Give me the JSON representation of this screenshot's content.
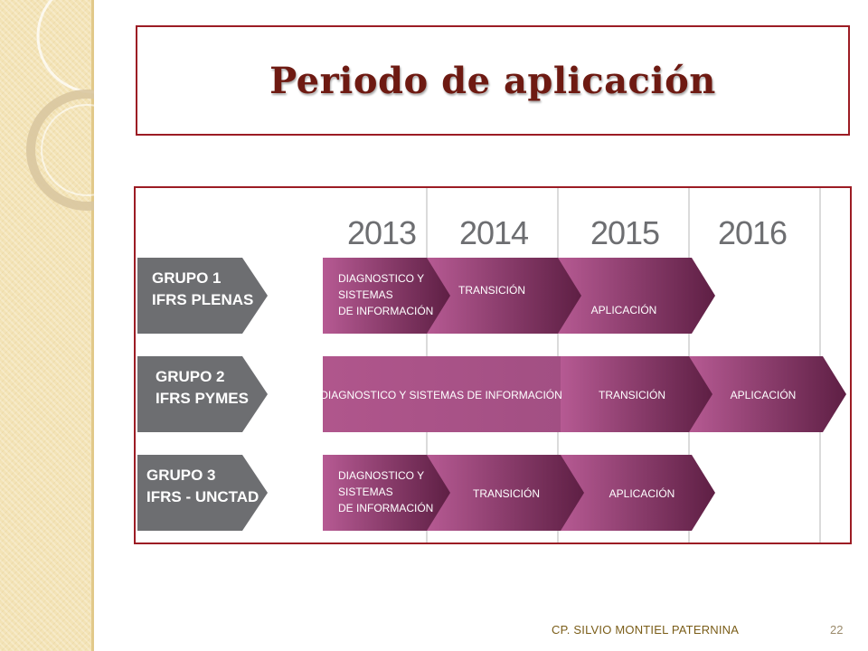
{
  "slide": {
    "title": "Periodo de aplicación",
    "footer": "CP. SILVIO MONTIEL PATERNINA",
    "page_number": "22"
  },
  "diagram": {
    "years": [
      "2013",
      "2014",
      "2015",
      "2016"
    ],
    "groups": [
      {
        "label_lines": [
          "GRUPO 1",
          "IFRS PLENAS"
        ],
        "phases": [
          {
            "lines": [
              "DIAGNOSTICO Y",
              "SISTEMAS",
              "DE INFORMACIÓN"
            ]
          },
          {
            "lines": [
              "TRANSICIÓN"
            ]
          },
          {
            "lines": [
              "APLICACIÓN"
            ]
          }
        ]
      },
      {
        "label_lines": [
          "GRUPO 2",
          "IFRS PYMES"
        ],
        "phases": [
          {
            "lines": [
              "DIAGNOSTICO Y SISTEMAS DE INFORMACIÓN"
            ]
          },
          {
            "lines": [
              "TRANSICIÓN"
            ]
          },
          {
            "lines": [
              "APLICACIÓN"
            ]
          }
        ]
      },
      {
        "label_lines": [
          "GRUPO 3",
          "IFRS - UNCTAD"
        ],
        "phases": [
          {
            "lines": [
              "DIAGNOSTICO Y",
              "SISTEMAS",
              "DE INFORMACIÓN"
            ]
          },
          {
            "lines": [
              "TRANSICIÓN"
            ]
          },
          {
            "lines": [
              "APLICACIÓN"
            ]
          }
        ]
      }
    ],
    "colors": {
      "group_box": "#6d6e71",
      "phase_light": "#b65a93",
      "phase_dark": "#5e1f44",
      "gridline": "#cfcfcf",
      "year_text": "#6d6e71",
      "frame": "#9c1c24"
    }
  }
}
